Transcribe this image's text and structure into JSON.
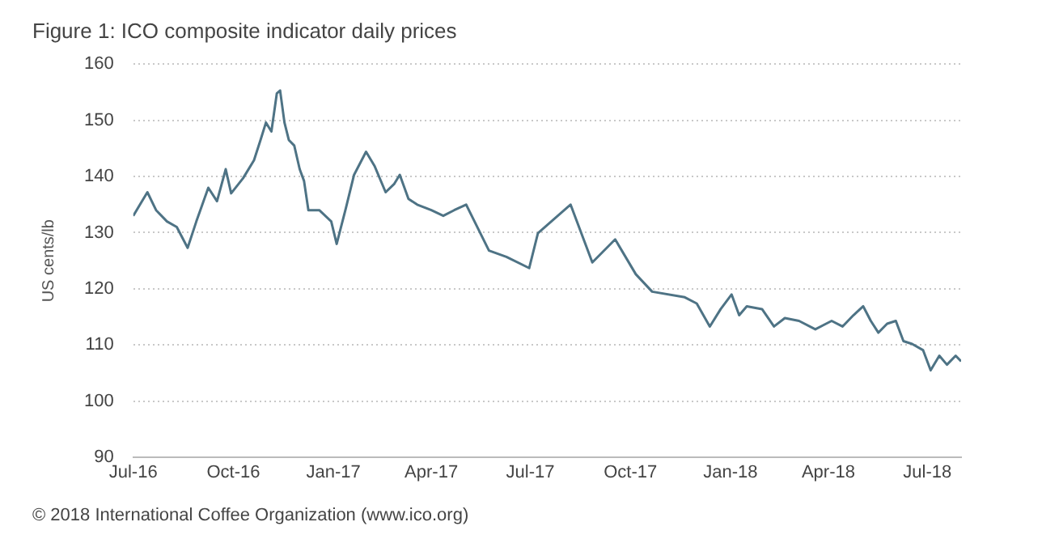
{
  "chart_data": {
    "type": "line",
    "title": "Figure 1: ICO composite indicator daily prices",
    "ylabel": "US cents/lb",
    "annotations": [
      "© 2018 International Coffee Organization (www.ico.org)"
    ],
    "x": [
      "2016-07-01",
      "2016-07-14",
      "2016-07-22",
      "2016-08-01",
      "2016-08-10",
      "2016-08-20",
      "2016-08-28",
      "2016-09-08",
      "2016-09-16",
      "2016-09-24",
      "2016-09-29",
      "2016-10-10",
      "2016-10-20",
      "2016-10-26",
      "2016-10-31",
      "2016-11-05",
      "2016-11-10",
      "2016-11-13",
      "2016-11-17",
      "2016-11-21",
      "2016-11-26",
      "2016-12-01",
      "2016-12-05",
      "2016-12-09",
      "2016-12-19",
      "2016-12-30",
      "2017-01-04",
      "2017-01-12",
      "2017-01-20",
      "2017-01-31",
      "2017-02-08",
      "2017-02-18",
      "2017-02-26",
      "2017-03-03",
      "2017-03-11",
      "2017-03-19",
      "2017-04-01",
      "2017-04-12",
      "2017-04-22",
      "2017-05-03",
      "2017-05-24",
      "2017-06-09",
      "2017-06-30",
      "2017-07-08",
      "2017-08-07",
      "2017-08-27",
      "2017-09-17",
      "2017-10-06",
      "2017-10-21",
      "2017-11-20",
      "2017-12-01",
      "2017-12-13",
      "2017-12-23",
      "2018-01-02",
      "2018-01-09",
      "2018-01-16",
      "2018-01-30",
      "2018-02-10",
      "2018-02-20",
      "2018-03-05",
      "2018-03-20",
      "2018-04-04",
      "2018-04-14",
      "2018-04-24",
      "2018-05-03",
      "2018-05-10",
      "2018-05-17",
      "2018-05-25",
      "2018-06-02",
      "2018-06-09",
      "2018-06-17",
      "2018-06-27",
      "2018-07-04",
      "2018-07-12",
      "2018-07-19",
      "2018-07-27",
      "2018-08-01"
    ],
    "series": [
      {
        "color": "#4e7385",
        "values": [
          133,
          137.2,
          134,
          132,
          131,
          127.3,
          132,
          138,
          135.6,
          141.3,
          137,
          139.7,
          142.9,
          146.5,
          149.6,
          148,
          154.8,
          155.3,
          149.6,
          146.5,
          145.5,
          141.3,
          139.2,
          134,
          134,
          132,
          128,
          134,
          140.3,
          144.4,
          141.8,
          137.2,
          138.7,
          140.3,
          136,
          135,
          134,
          133,
          134,
          135,
          126.8,
          125.7,
          123.7,
          129.9,
          135,
          124.7,
          128.8,
          122.6,
          119.5,
          118.5,
          117.4,
          113.3,
          116.4,
          119,
          115.3,
          116.9,
          116.4,
          113.3,
          114.8,
          114.3,
          112.8,
          114.3,
          113.3,
          115.3,
          116.9,
          114.3,
          112.2,
          113.8,
          114.3,
          110.7,
          110.2,
          109.1,
          105.5,
          108.1,
          106.5,
          108.1,
          107.1
        ]
      }
    ],
    "xlim": [
      "2016-07-01",
      "2018-08-01"
    ],
    "xticks": [
      {
        "value": "2016-07-01",
        "label": "Jul-16"
      },
      {
        "value": "2016-10-01",
        "label": "Oct-16"
      },
      {
        "value": "2017-01-01",
        "label": "Jan-17"
      },
      {
        "value": "2017-04-01",
        "label": "Apr-17"
      },
      {
        "value": "2017-07-01",
        "label": "Jul-17"
      },
      {
        "value": "2017-10-01",
        "label": "Oct-17"
      },
      {
        "value": "2018-01-01",
        "label": "Jan-18"
      },
      {
        "value": "2018-04-01",
        "label": "Apr-18"
      },
      {
        "value": "2018-07-01",
        "label": "Jul-18"
      }
    ],
    "ylim": [
      90,
      160
    ],
    "yticks": [
      90,
      100,
      110,
      120,
      130,
      140,
      150,
      160
    ],
    "grid": "y",
    "marker": "none",
    "line_style": "solid"
  }
}
